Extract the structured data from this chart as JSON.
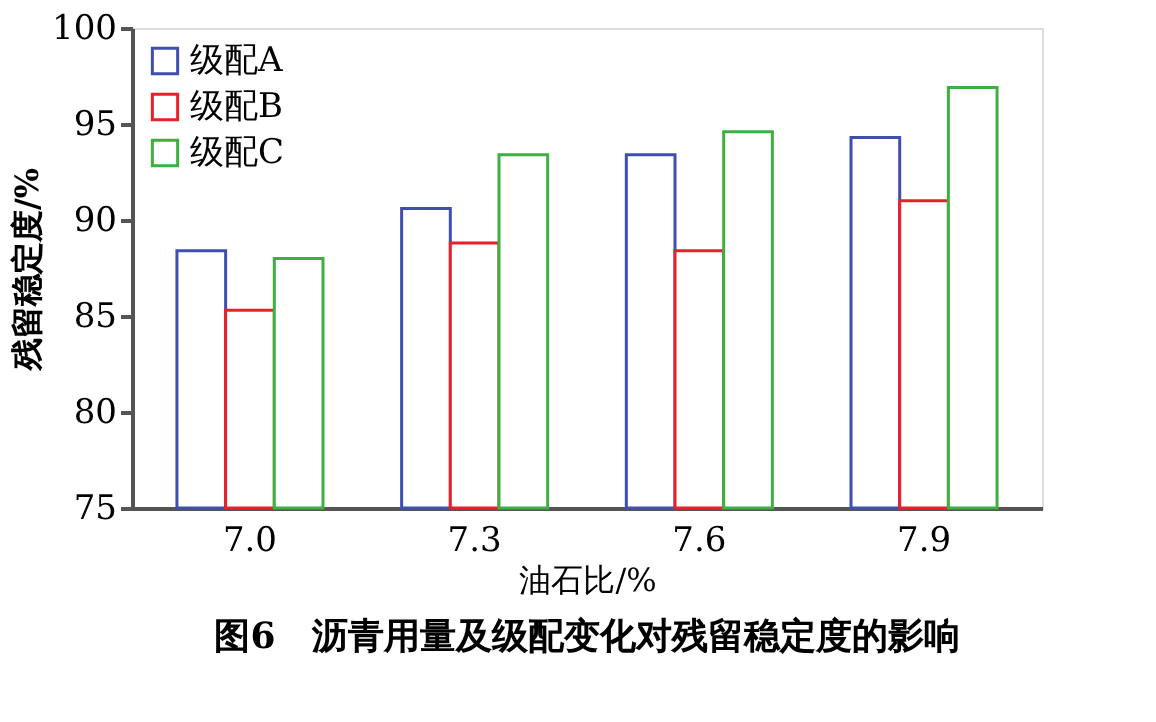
{
  "chart_data": {
    "type": "bar",
    "title": "图6　沥青用量及级配变化对残留稳定度的影响",
    "xlabel": "油石比/%",
    "ylabel": "残留稳定度/%",
    "categories": [
      "7.0",
      "7.3",
      "7.6",
      "7.9"
    ],
    "series": [
      {
        "name": "级配A",
        "color": "#3f4fb0",
        "values": [
          88.4,
          90.6,
          93.4,
          94.3
        ]
      },
      {
        "name": "级配B",
        "color": "#e8202a",
        "values": [
          85.3,
          88.8,
          88.4,
          91.0
        ]
      },
      {
        "name": "级配C",
        "color": "#3cb040",
        "values": [
          88.0,
          93.4,
          94.6,
          96.9
        ]
      }
    ],
    "ylim": [
      75,
      100
    ],
    "yticks": [
      75,
      80,
      85,
      90,
      95,
      100
    ],
    "grid": false,
    "legend": "top left"
  }
}
